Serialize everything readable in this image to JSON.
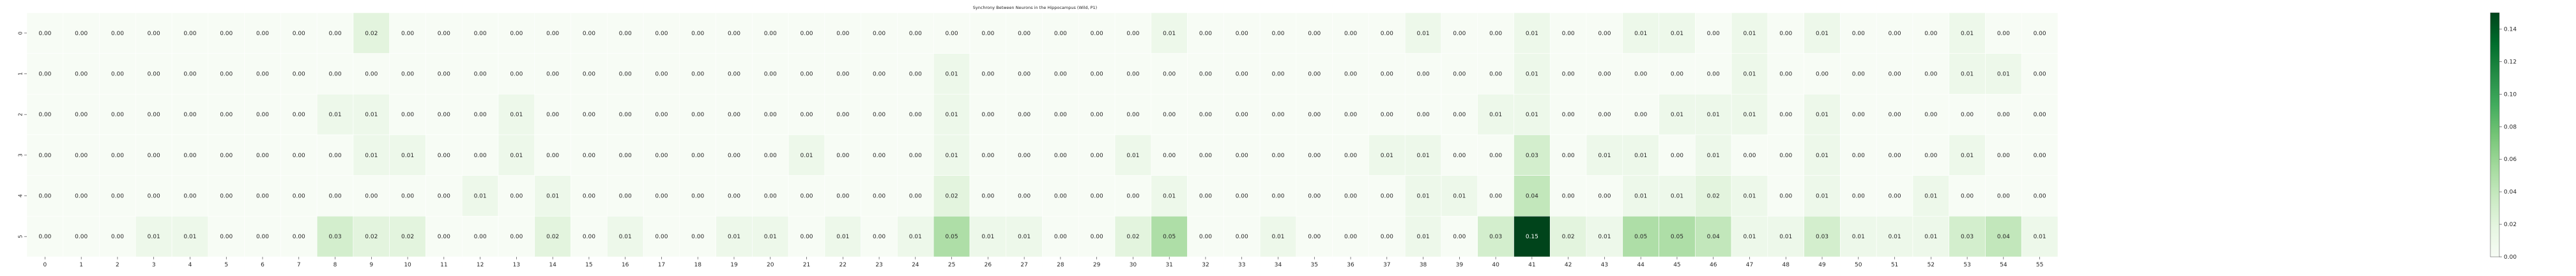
{
  "chart_data": {
    "type": "heatmap",
    "title": "Synchrony Between Neurons in the Hippocampus  (Wild,  P1)",
    "xlabel": "",
    "ylabel": "",
    "x_categories": [
      "0",
      "1",
      "2",
      "3",
      "4",
      "5",
      "6",
      "7",
      "8",
      "9",
      "10",
      "11",
      "12",
      "13",
      "14",
      "15",
      "16",
      "17",
      "18",
      "19",
      "20",
      "21",
      "22",
      "23",
      "24",
      "25",
      "26",
      "27",
      "28",
      "29",
      "30",
      "31",
      "32",
      "33",
      "34",
      "35",
      "36",
      "37",
      "38",
      "39",
      "40",
      "41",
      "42",
      "43",
      "44",
      "45",
      "46",
      "47",
      "48",
      "49",
      "50",
      "51",
      "52",
      "53",
      "54",
      "55"
    ],
    "y_categories": [
      "0",
      "1",
      "2",
      "3",
      "4",
      "5"
    ],
    "values": [
      [
        "0.00",
        "0.00",
        "0.00",
        "0.00",
        "0.00",
        "0.00",
        "0.00",
        "0.00",
        "0.00",
        "0.02",
        "0.00",
        "0.00",
        "0.00",
        "0.00",
        "0.00",
        "0.00",
        "0.00",
        "0.00",
        "0.00",
        "0.00",
        "0.00",
        "0.00",
        "0.00",
        "0.00",
        "0.00",
        "0.00",
        "0.00",
        "0.00",
        "0.00",
        "0.00",
        "0.00",
        "0.01",
        "0.00",
        "0.00",
        "0.00",
        "0.00",
        "0.00",
        "0.00",
        "0.01",
        "0.00",
        "0.00",
        "0.01",
        "0.00",
        "0.00",
        "0.01",
        "0.01",
        "0.00",
        "0.01",
        "0.00",
        "0.01",
        "0.00",
        "0.00",
        "0.00",
        "0.01",
        "0.00",
        "0.00"
      ],
      [
        "0.00",
        "0.00",
        "0.00",
        "0.00",
        "0.00",
        "0.00",
        "0.00",
        "0.00",
        "0.00",
        "0.00",
        "0.00",
        "0.00",
        "0.00",
        "0.00",
        "0.00",
        "0.00",
        "0.00",
        "0.00",
        "0.00",
        "0.00",
        "0.00",
        "0.00",
        "0.00",
        "0.00",
        "0.00",
        "0.01",
        "0.00",
        "0.00",
        "0.00",
        "0.00",
        "0.00",
        "0.00",
        "0.00",
        "0.00",
        "0.00",
        "0.00",
        "0.00",
        "0.00",
        "0.00",
        "0.00",
        "0.00",
        "0.01",
        "0.00",
        "0.00",
        "0.00",
        "0.00",
        "0.00",
        "0.01",
        "0.00",
        "0.00",
        "0.00",
        "0.00",
        "0.00",
        "0.01",
        "0.01",
        "0.00"
      ],
      [
        "0.00",
        "0.00",
        "0.00",
        "0.00",
        "0.00",
        "0.00",
        "0.00",
        "0.00",
        "0.01",
        "0.01",
        "0.00",
        "0.00",
        "0.00",
        "0.01",
        "0.00",
        "0.00",
        "0.00",
        "0.00",
        "0.00",
        "0.00",
        "0.00",
        "0.00",
        "0.00",
        "0.00",
        "0.00",
        "0.01",
        "0.00",
        "0.00",
        "0.00",
        "0.00",
        "0.00",
        "0.00",
        "0.00",
        "0.00",
        "0.00",
        "0.00",
        "0.00",
        "0.00",
        "0.00",
        "0.00",
        "0.01",
        "0.01",
        "0.00",
        "0.00",
        "0.00",
        "0.01",
        "0.01",
        "0.01",
        "0.00",
        "0.01",
        "0.00",
        "0.00",
        "0.00",
        "0.00",
        "0.00",
        "0.00"
      ],
      [
        "0.00",
        "0.00",
        "0.00",
        "0.00",
        "0.00",
        "0.00",
        "0.00",
        "0.00",
        "0.00",
        "0.01",
        "0.01",
        "0.00",
        "0.00",
        "0.01",
        "0.00",
        "0.00",
        "0.00",
        "0.00",
        "0.00",
        "0.00",
        "0.00",
        "0.01",
        "0.00",
        "0.00",
        "0.00",
        "0.01",
        "0.00",
        "0.00",
        "0.00",
        "0.00",
        "0.01",
        "0.00",
        "0.00",
        "0.00",
        "0.00",
        "0.00",
        "0.00",
        "0.01",
        "0.01",
        "0.00",
        "0.00",
        "0.03",
        "0.00",
        "0.01",
        "0.01",
        "0.00",
        "0.01",
        "0.00",
        "0.00",
        "0.01",
        "0.00",
        "0.00",
        "0.00",
        "0.01",
        "0.00",
        "0.00"
      ],
      [
        "0.00",
        "0.00",
        "0.00",
        "0.00",
        "0.00",
        "0.00",
        "0.00",
        "0.00",
        "0.00",
        "0.00",
        "0.00",
        "0.00",
        "0.01",
        "0.00",
        "0.01",
        "0.00",
        "0.00",
        "0.00",
        "0.00",
        "0.00",
        "0.00",
        "0.00",
        "0.00",
        "0.00",
        "0.00",
        "0.02",
        "0.00",
        "0.00",
        "0.00",
        "0.00",
        "0.00",
        "0.01",
        "0.00",
        "0.00",
        "0.00",
        "0.00",
        "0.00",
        "0.00",
        "0.01",
        "0.01",
        "0.00",
        "0.04",
        "0.00",
        "0.00",
        "0.01",
        "0.01",
        "0.02",
        "0.01",
        "0.00",
        "0.01",
        "0.00",
        "0.00",
        "0.01",
        "0.00",
        "0.00",
        "0.00"
      ],
      [
        "0.00",
        "0.00",
        "0.00",
        "0.01",
        "0.01",
        "0.00",
        "0.00",
        "0.00",
        "0.03",
        "0.02",
        "0.02",
        "0.00",
        "0.00",
        "0.00",
        "0.02",
        "0.00",
        "0.01",
        "0.00",
        "0.00",
        "0.01",
        "0.01",
        "0.00",
        "0.01",
        "0.00",
        "0.01",
        "0.05",
        "0.01",
        "0.01",
        "0.00",
        "0.00",
        "0.02",
        "0.05",
        "0.00",
        "0.00",
        "0.01",
        "0.00",
        "0.00",
        "0.00",
        "0.01",
        "0.00",
        "0.03",
        "0.15",
        "0.02",
        "0.01",
        "0.05",
        "0.05",
        "0.04",
        "0.01",
        "0.01",
        "0.03",
        "0.01",
        "0.01",
        "0.01",
        "0.03",
        "0.04",
        "0.01"
      ]
    ],
    "colorbar": {
      "colormap": "Greens",
      "vmin": 0,
      "vmax": 0.15,
      "ticks": [
        "0.00",
        "0.02",
        "0.04",
        "0.06",
        "0.08",
        "0.10",
        "0.12",
        "0.14"
      ]
    }
  }
}
